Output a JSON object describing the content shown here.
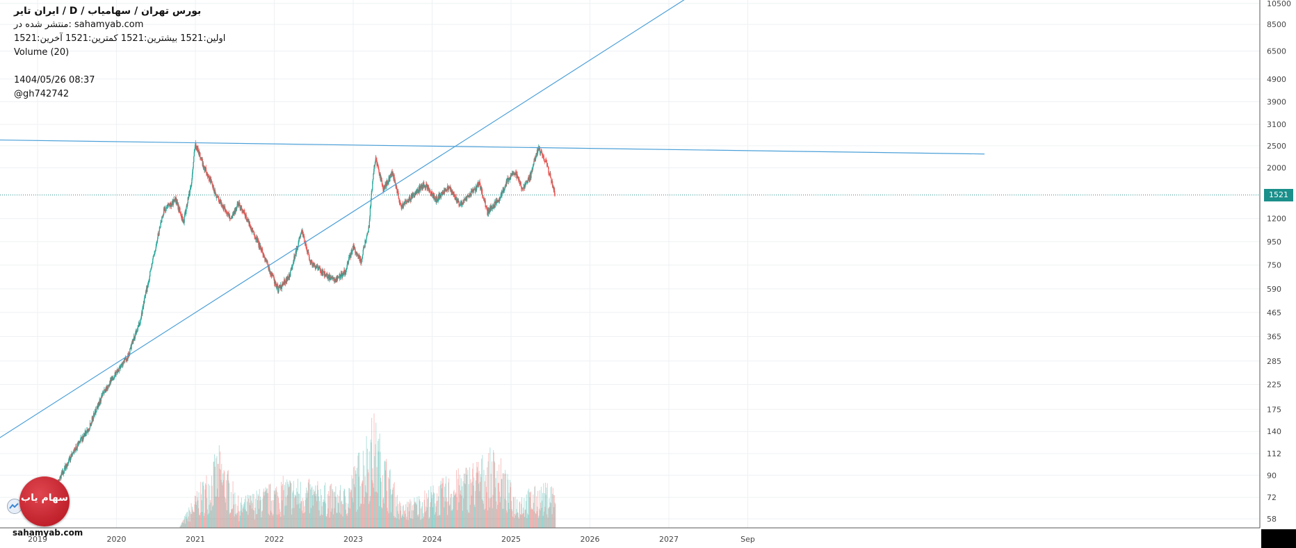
{
  "header": {
    "title": "ایران تایر / D / بورس تهران / سهامیاب",
    "published": "منتشر شده در: sahamyab.com",
    "ohlc": "اولین:1521 بیشترین:1521 کمترین:1521 آخرین:1521",
    "volume": "Volume (20)",
    "timestamp": "1404/05/26 08:37",
    "user": "@gh742742"
  },
  "price_tag": "1521",
  "logo": {
    "text": "سهام یاب",
    "site": "sahamyab.com"
  },
  "colors": {
    "up": "#26a69a",
    "down": "#ef5350",
    "trendline": "#4a9fd8",
    "price_line": "#1b8f8a"
  },
  "chart_data": {
    "type": "candlestick",
    "y_scale": "log",
    "y_ticks": [
      10500,
      8500,
      6500,
      4900,
      3900,
      3100,
      2500,
      2000,
      1200,
      950,
      750,
      590,
      465,
      365,
      285,
      225,
      175,
      140,
      112,
      90,
      72,
      58
    ],
    "x_ticks": [
      "2019",
      "2020",
      "2021",
      "2022",
      "2023",
      "2024",
      "2025",
      "2026",
      "2027",
      "Sep"
    ],
    "last_price": 1521,
    "price_path": [
      {
        "x": 2019.0,
        "y": 58
      },
      {
        "x": 2019.2,
        "y": 75
      },
      {
        "x": 2019.45,
        "y": 112
      },
      {
        "x": 2019.65,
        "y": 145
      },
      {
        "x": 2019.85,
        "y": 210
      },
      {
        "x": 2020.0,
        "y": 255
      },
      {
        "x": 2020.15,
        "y": 300
      },
      {
        "x": 2020.3,
        "y": 420
      },
      {
        "x": 2020.4,
        "y": 620
      },
      {
        "x": 2020.5,
        "y": 900
      },
      {
        "x": 2020.6,
        "y": 1300
      },
      {
        "x": 2020.75,
        "y": 1450
      },
      {
        "x": 2020.85,
        "y": 1150
      },
      {
        "x": 2020.95,
        "y": 1700
      },
      {
        "x": 2021.0,
        "y": 2550
      },
      {
        "x": 2021.1,
        "y": 2050
      },
      {
        "x": 2021.25,
        "y": 1550
      },
      {
        "x": 2021.35,
        "y": 1350
      },
      {
        "x": 2021.45,
        "y": 1200
      },
      {
        "x": 2021.55,
        "y": 1400
      },
      {
        "x": 2021.7,
        "y": 1100
      },
      {
        "x": 2021.85,
        "y": 850
      },
      {
        "x": 2021.95,
        "y": 700
      },
      {
        "x": 2022.05,
        "y": 580
      },
      {
        "x": 2022.2,
        "y": 680
      },
      {
        "x": 2022.35,
        "y": 1050
      },
      {
        "x": 2022.45,
        "y": 780
      },
      {
        "x": 2022.6,
        "y": 700
      },
      {
        "x": 2022.75,
        "y": 640
      },
      {
        "x": 2022.9,
        "y": 700
      },
      {
        "x": 2023.0,
        "y": 900
      },
      {
        "x": 2023.1,
        "y": 780
      },
      {
        "x": 2023.2,
        "y": 1100
      },
      {
        "x": 2023.28,
        "y": 2200
      },
      {
        "x": 2023.38,
        "y": 1600
      },
      {
        "x": 2023.5,
        "y": 1900
      },
      {
        "x": 2023.6,
        "y": 1350
      },
      {
        "x": 2023.75,
        "y": 1500
      },
      {
        "x": 2023.9,
        "y": 1700
      },
      {
        "x": 2024.05,
        "y": 1450
      },
      {
        "x": 2024.2,
        "y": 1650
      },
      {
        "x": 2024.35,
        "y": 1380
      },
      {
        "x": 2024.5,
        "y": 1550
      },
      {
        "x": 2024.6,
        "y": 1700
      },
      {
        "x": 2024.7,
        "y": 1280
      },
      {
        "x": 2024.85,
        "y": 1450
      },
      {
        "x": 2024.95,
        "y": 1750
      },
      {
        "x": 2025.05,
        "y": 1900
      },
      {
        "x": 2025.15,
        "y": 1600
      },
      {
        "x": 2025.25,
        "y": 1850
      },
      {
        "x": 2025.35,
        "y": 2450
      },
      {
        "x": 2025.45,
        "y": 2100
      },
      {
        "x": 2025.52,
        "y": 1700
      },
      {
        "x": 2025.56,
        "y": 1521
      }
    ],
    "volume_path": [
      {
        "x": 2020.8,
        "y": 0.02
      },
      {
        "x": 2021.0,
        "y": 0.3
      },
      {
        "x": 2021.3,
        "y": 0.7
      },
      {
        "x": 2021.55,
        "y": 0.25
      },
      {
        "x": 2022.15,
        "y": 0.45
      },
      {
        "x": 2022.9,
        "y": 0.35
      },
      {
        "x": 2023.25,
        "y": 1.0
      },
      {
        "x": 2023.6,
        "y": 0.2
      },
      {
        "x": 2024.8,
        "y": 0.7
      },
      {
        "x": 2025.05,
        "y": 0.3
      },
      {
        "x": 2025.5,
        "y": 0.4
      }
    ],
    "trendlines": [
      {
        "x1": 2018.5,
        "y1": 130,
        "x2": 2027.3,
        "y2": 11500
      },
      {
        "x1": 2018.5,
        "y1": 2650,
        "x2": 2031.0,
        "y2": 2300
      }
    ],
    "grid": true
  }
}
